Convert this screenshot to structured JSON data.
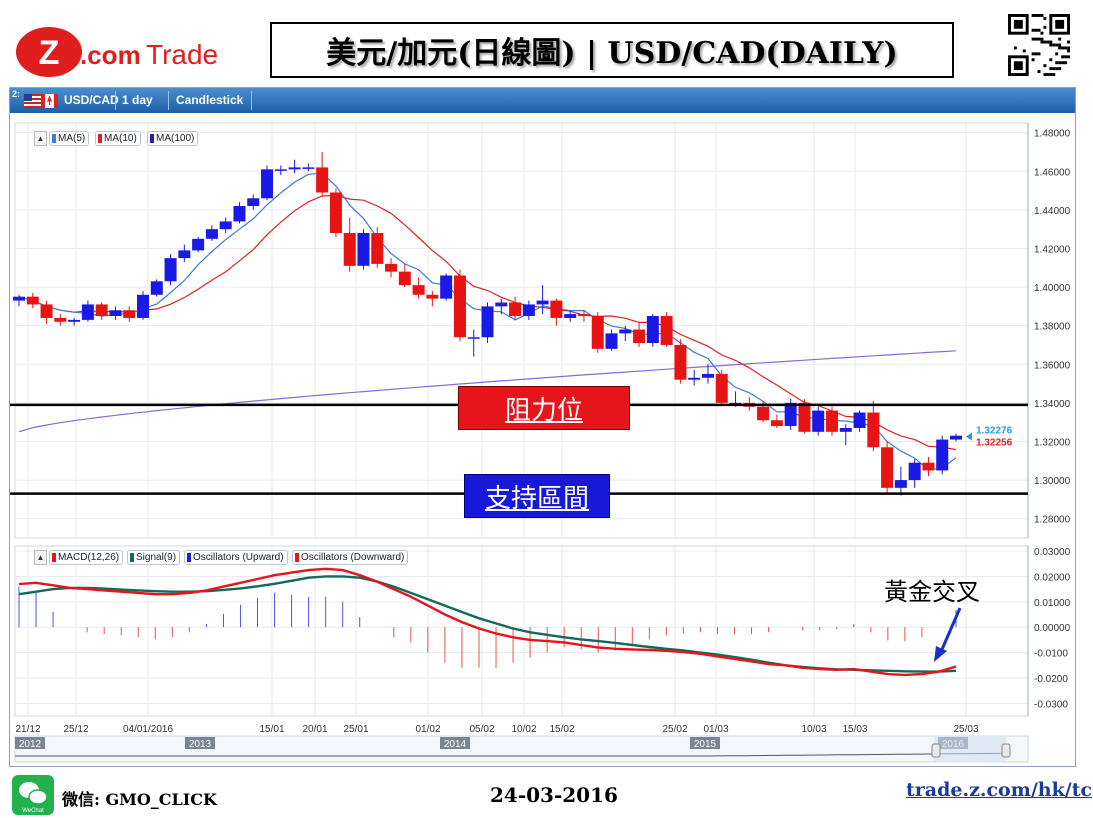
{
  "header": {
    "brand": "Z.com Trade",
    "brand_z": "Z",
    "brand_com": ".com",
    "brand_trade": "Trade",
    "title": "美元/加元(日線圖) | USD/CAD(DAILY)"
  },
  "toolbar": {
    "index": "2:",
    "symbol": "USD/CAD",
    "period": "1 day",
    "chart_type": "Candlestick"
  },
  "colors": {
    "bull": "#1a1ae6",
    "bear": "#e81414",
    "ma5": "#3a7bd5",
    "ma10": "#e02020",
    "ma100": "#8a6ad8",
    "macd": "#e8141c",
    "signal": "#136a5a",
    "accent_blue": "#1e5fa8"
  },
  "price_legend": [
    "MA(5)",
    "MA(10)",
    "MA(100)"
  ],
  "macd_legend": [
    "MACD(12,26)",
    "Signal(9)",
    "Oscillators (Upward)",
    "Oscillators (Downward)"
  ],
  "annotations": {
    "resistance": "阻力位",
    "support": "支持區間",
    "golden_cross": "黃金交叉"
  },
  "footer": {
    "wechat": "微信: GMO_CLICK",
    "wechat_icon_text": "WeChat",
    "date": "24-03-2016",
    "url": "trade.z.com/hk/tc"
  },
  "chart_data": [
    {
      "type": "candlestick",
      "title": "USD/CAD 1 day",
      "ylim": [
        1.27,
        1.485
      ],
      "y_ticks": [
        "1.48000",
        "1.46000",
        "1.44000",
        "1.42000",
        "1.40000",
        "1.38000",
        "1.36000",
        "1.34000",
        "1.32000",
        "1.30000",
        "1.28000"
      ],
      "x_labels": [
        "21/12",
        "25/12",
        "04/01/2016",
        "15/01",
        "20/01",
        "25/01",
        "01/02",
        "05/02",
        "10/02",
        "15/02",
        "25/02",
        "01/03",
        "10/03",
        "15/03",
        "25/03"
      ],
      "last_price_upper": "1.32276",
      "last_price_lower": "1.32256",
      "resistance_level": 1.339,
      "support_level": 1.293,
      "candles": [
        {
          "o": 1.393,
          "h": 1.396,
          "l": 1.39,
          "c": 1.395
        },
        {
          "o": 1.395,
          "h": 1.397,
          "l": 1.389,
          "c": 1.391
        },
        {
          "o": 1.391,
          "h": 1.393,
          "l": 1.381,
          "c": 1.384
        },
        {
          "o": 1.384,
          "h": 1.386,
          "l": 1.38,
          "c": 1.382
        },
        {
          "o": 1.382,
          "h": 1.384,
          "l": 1.38,
          "c": 1.383
        },
        {
          "o": 1.383,
          "h": 1.393,
          "l": 1.382,
          "c": 1.391
        },
        {
          "o": 1.391,
          "h": 1.392,
          "l": 1.383,
          "c": 1.385
        },
        {
          "o": 1.385,
          "h": 1.39,
          "l": 1.383,
          "c": 1.388
        },
        {
          "o": 1.388,
          "h": 1.39,
          "l": 1.382,
          "c": 1.384
        },
        {
          "o": 1.384,
          "h": 1.398,
          "l": 1.383,
          "c": 1.396
        },
        {
          "o": 1.396,
          "h": 1.404,
          "l": 1.395,
          "c": 1.403
        },
        {
          "o": 1.403,
          "h": 1.417,
          "l": 1.401,
          "c": 1.415
        },
        {
          "o": 1.415,
          "h": 1.422,
          "l": 1.413,
          "c": 1.419
        },
        {
          "o": 1.419,
          "h": 1.426,
          "l": 1.418,
          "c": 1.425
        },
        {
          "o": 1.425,
          "h": 1.432,
          "l": 1.424,
          "c": 1.43
        },
        {
          "o": 1.43,
          "h": 1.436,
          "l": 1.428,
          "c": 1.434
        },
        {
          "o": 1.434,
          "h": 1.444,
          "l": 1.433,
          "c": 1.442
        },
        {
          "o": 1.442,
          "h": 1.448,
          "l": 1.44,
          "c": 1.446
        },
        {
          "o": 1.446,
          "h": 1.463,
          "l": 1.445,
          "c": 1.461
        },
        {
          "o": 1.461,
          "h": 1.463,
          "l": 1.458,
          "c": 1.461
        },
        {
          "o": 1.461,
          "h": 1.466,
          "l": 1.459,
          "c": 1.462
        },
        {
          "o": 1.462,
          "h": 1.464,
          "l": 1.46,
          "c": 1.462
        },
        {
          "o": 1.462,
          "h": 1.47,
          "l": 1.447,
          "c": 1.449
        },
        {
          "o": 1.449,
          "h": 1.451,
          "l": 1.426,
          "c": 1.428
        },
        {
          "o": 1.428,
          "h": 1.436,
          "l": 1.408,
          "c": 1.411
        },
        {
          "o": 1.411,
          "h": 1.43,
          "l": 1.409,
          "c": 1.428
        },
        {
          "o": 1.428,
          "h": 1.431,
          "l": 1.41,
          "c": 1.412
        },
        {
          "o": 1.412,
          "h": 1.415,
          "l": 1.405,
          "c": 1.408
        },
        {
          "o": 1.408,
          "h": 1.412,
          "l": 1.4,
          "c": 1.401
        },
        {
          "o": 1.401,
          "h": 1.405,
          "l": 1.394,
          "c": 1.396
        },
        {
          "o": 1.396,
          "h": 1.398,
          "l": 1.39,
          "c": 1.394
        },
        {
          "o": 1.394,
          "h": 1.407,
          "l": 1.393,
          "c": 1.406
        },
        {
          "o": 1.406,
          "h": 1.409,
          "l": 1.372,
          "c": 1.374
        },
        {
          "o": 1.374,
          "h": 1.378,
          "l": 1.364,
          "c": 1.374
        },
        {
          "o": 1.374,
          "h": 1.392,
          "l": 1.371,
          "c": 1.39
        },
        {
          "o": 1.39,
          "h": 1.394,
          "l": 1.386,
          "c": 1.392
        },
        {
          "o": 1.392,
          "h": 1.395,
          "l": 1.383,
          "c": 1.385
        },
        {
          "o": 1.385,
          "h": 1.393,
          "l": 1.383,
          "c": 1.391
        },
        {
          "o": 1.391,
          "h": 1.401,
          "l": 1.386,
          "c": 1.393
        },
        {
          "o": 1.393,
          "h": 1.394,
          "l": 1.38,
          "c": 1.384
        },
        {
          "o": 1.384,
          "h": 1.388,
          "l": 1.382,
          "c": 1.386
        },
        {
          "o": 1.386,
          "h": 1.388,
          "l": 1.382,
          "c": 1.385
        },
        {
          "o": 1.385,
          "h": 1.387,
          "l": 1.366,
          "c": 1.368
        },
        {
          "o": 1.368,
          "h": 1.378,
          "l": 1.367,
          "c": 1.376
        },
        {
          "o": 1.376,
          "h": 1.38,
          "l": 1.372,
          "c": 1.378
        },
        {
          "o": 1.378,
          "h": 1.382,
          "l": 1.369,
          "c": 1.371
        },
        {
          "o": 1.371,
          "h": 1.386,
          "l": 1.369,
          "c": 1.385
        },
        {
          "o": 1.385,
          "h": 1.387,
          "l": 1.369,
          "c": 1.37
        },
        {
          "o": 1.37,
          "h": 1.373,
          "l": 1.35,
          "c": 1.352
        },
        {
          "o": 1.352,
          "h": 1.357,
          "l": 1.349,
          "c": 1.353
        },
        {
          "o": 1.353,
          "h": 1.36,
          "l": 1.35,
          "c": 1.355
        },
        {
          "o": 1.355,
          "h": 1.357,
          "l": 1.339,
          "c": 1.34
        },
        {
          "o": 1.34,
          "h": 1.346,
          "l": 1.338,
          "c": 1.34
        },
        {
          "o": 1.34,
          "h": 1.343,
          "l": 1.336,
          "c": 1.338
        },
        {
          "o": 1.338,
          "h": 1.341,
          "l": 1.33,
          "c": 1.331
        },
        {
          "o": 1.331,
          "h": 1.334,
          "l": 1.327,
          "c": 1.328
        },
        {
          "o": 1.328,
          "h": 1.342,
          "l": 1.326,
          "c": 1.34
        },
        {
          "o": 1.34,
          "h": 1.342,
          "l": 1.324,
          "c": 1.325
        },
        {
          "o": 1.325,
          "h": 1.338,
          "l": 1.323,
          "c": 1.336
        },
        {
          "o": 1.336,
          "h": 1.338,
          "l": 1.323,
          "c": 1.325
        },
        {
          "o": 1.325,
          "h": 1.329,
          "l": 1.318,
          "c": 1.327
        },
        {
          "o": 1.327,
          "h": 1.336,
          "l": 1.325,
          "c": 1.335
        },
        {
          "o": 1.335,
          "h": 1.341,
          "l": 1.315,
          "c": 1.317
        },
        {
          "o": 1.317,
          "h": 1.32,
          "l": 1.293,
          "c": 1.296
        },
        {
          "o": 1.296,
          "h": 1.307,
          "l": 1.292,
          "c": 1.3
        },
        {
          "o": 1.3,
          "h": 1.311,
          "l": 1.296,
          "c": 1.309
        },
        {
          "o": 1.309,
          "h": 1.312,
          "l": 1.302,
          "c": 1.305
        },
        {
          "o": 1.305,
          "h": 1.323,
          "l": 1.303,
          "c": 1.321
        },
        {
          "o": 1.321,
          "h": 1.324,
          "l": 1.32,
          "c": 1.323
        }
      ],
      "ma100": {
        "from": 1.325,
        "to": 1.367
      }
    },
    {
      "type": "line",
      "title": "MACD",
      "ylim": [
        -0.035,
        0.032
      ],
      "y_ticks": [
        "0.03000",
        "0.02000",
        "0.01000",
        "0.00000",
        "-0.0100",
        "-0.0200",
        "-0.0300"
      ],
      "series": [
        {
          "name": "MACD(12,26)",
          "values": [
            0.017,
            0.0175,
            0.0165,
            0.0155,
            0.015,
            0.0145,
            0.014,
            0.0135,
            0.013,
            0.013,
            0.0135,
            0.0145,
            0.016,
            0.0175,
            0.019,
            0.0205,
            0.0215,
            0.0225,
            0.023,
            0.0225,
            0.0205,
            0.018,
            0.015,
            0.012,
            0.0085,
            0.005,
            0.002,
            -0.0005,
            -0.0025,
            -0.004,
            -0.005,
            -0.0055,
            -0.006,
            -0.007,
            -0.008,
            -0.0085,
            -0.0088,
            -0.009,
            -0.0093,
            -0.0098,
            -0.0105,
            -0.0115,
            -0.0125,
            -0.0135,
            -0.0145,
            -0.015,
            -0.016,
            -0.0165,
            -0.0168,
            -0.0165,
            -0.0175,
            -0.0185,
            -0.0188,
            -0.0185,
            -0.0175,
            -0.0155
          ]
        },
        {
          "name": "Signal(9)",
          "values": [
            0.013,
            0.014,
            0.015,
            0.0155,
            0.0155,
            0.0152,
            0.0148,
            0.0145,
            0.0142,
            0.014,
            0.014,
            0.0142,
            0.0147,
            0.0153,
            0.0161,
            0.0171,
            0.0183,
            0.0195,
            0.02,
            0.02,
            0.0195,
            0.018,
            0.016,
            0.0135,
            0.011,
            0.0085,
            0.006,
            0.0035,
            0.0015,
            -0.0005,
            -0.002,
            -0.003,
            -0.004,
            -0.0048,
            -0.0055,
            -0.0062,
            -0.007,
            -0.0078,
            -0.0085,
            -0.0092,
            -0.01,
            -0.0108,
            -0.0118,
            -0.0128,
            -0.014,
            -0.015,
            -0.0157,
            -0.0162,
            -0.0166,
            -0.0168,
            -0.017,
            -0.0172,
            -0.0174,
            -0.0175,
            -0.0175,
            -0.0172
          ]
        }
      ]
    }
  ],
  "navigator": {
    "years": [
      "2012",
      "2013",
      "2014",
      "2015",
      "2016"
    ]
  }
}
